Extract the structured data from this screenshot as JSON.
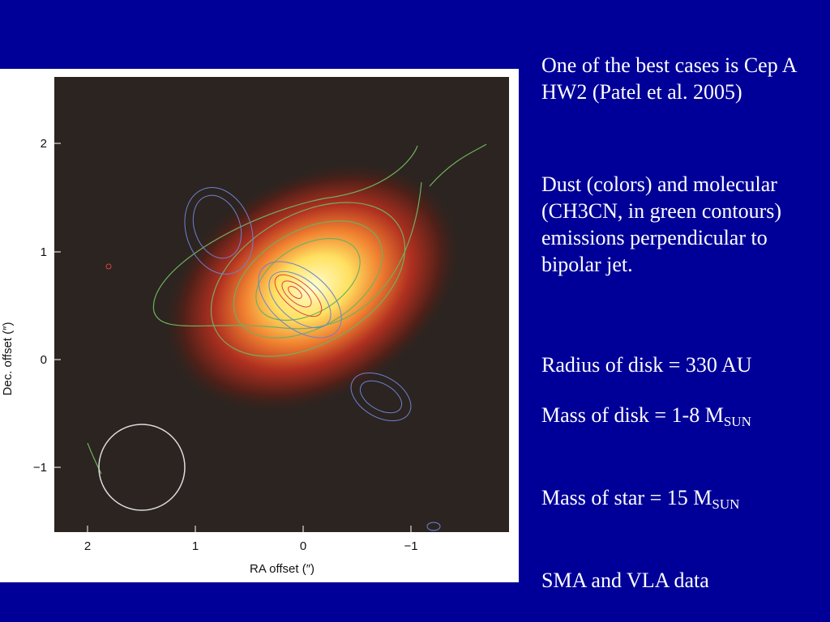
{
  "figure": {
    "x_axis_label": "RA offset (″)",
    "y_axis_label": "Dec. offset (″)",
    "x_tick_labels": [
      "2",
      "1",
      "0",
      "−1"
    ],
    "y_tick_labels": [
      "2",
      "1",
      "0",
      "−1"
    ]
  },
  "text": {
    "paragraphs": [
      "One of the best cases is Cep A HW2 (Patel et al. 2005)",
      "Dust (colors) and molecular (CH3CN, in green contours) emissions perpendicular to bipolar jet.",
      "Radius of disk = 330 AU"
    ],
    "disk_mass": {
      "text": "Mass of disk = 1-8 M",
      "subscript": "SUN"
    },
    "star_mass": {
      "text": "Mass of star = 15 M",
      "subscript": "SUN"
    },
    "data_source": "SMA and VLA data"
  }
}
